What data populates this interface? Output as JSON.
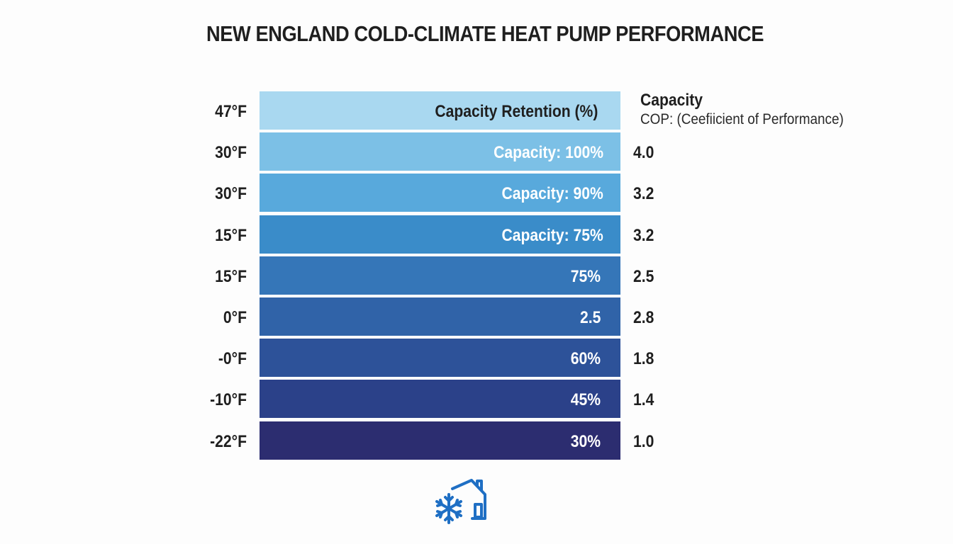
{
  "title": "NEW ENGLAND COLD-CLIMATE HEAT PUMP PERFORMANCE",
  "legend": {
    "title": "Capacity",
    "subtitle": "COP: (Ceefiicient of Performance)"
  },
  "chart_data": {
    "type": "table",
    "title": "NEW ENGLAND COLD-CLIMATE HEAT PUMP PERFORMANCE",
    "header": {
      "temperature": "47°F",
      "bar_label": "Capacity Retention (%)"
    },
    "rows": [
      {
        "temperature": "30°F",
        "bar_label": "Capacity: 100%",
        "cop": "4.0",
        "color": "#7cc0e6"
      },
      {
        "temperature": "30°F",
        "bar_label": "Capacity: 90%",
        "cop": "3.2",
        "color": "#58a9dc"
      },
      {
        "temperature": "15°F",
        "bar_label": "Capacity: 75%",
        "cop": "3.2",
        "color": "#3a8cc9"
      },
      {
        "temperature": "15°F",
        "bar_label": "75%",
        "cop": "2.5",
        "color": "#3576b8"
      },
      {
        "temperature": "0°F",
        "bar_label": "2.5",
        "cop": "2.8",
        "color": "#3063a8"
      },
      {
        "temperature": "-0°F",
        "bar_label": "60%",
        "cop": "1.8",
        "color": "#2d5299"
      },
      {
        "temperature": "-10°F",
        "bar_label": "45%",
        "cop": "1.4",
        "color": "#2b4189"
      },
      {
        "temperature": "-22°F",
        "bar_label": "30%",
        "cop": "1.0",
        "color": "#2c2d70"
      }
    ],
    "header_color": "#a9d8f0"
  },
  "icon": {
    "name": "snowflake-house-icon",
    "color": "#1f6fc4"
  }
}
